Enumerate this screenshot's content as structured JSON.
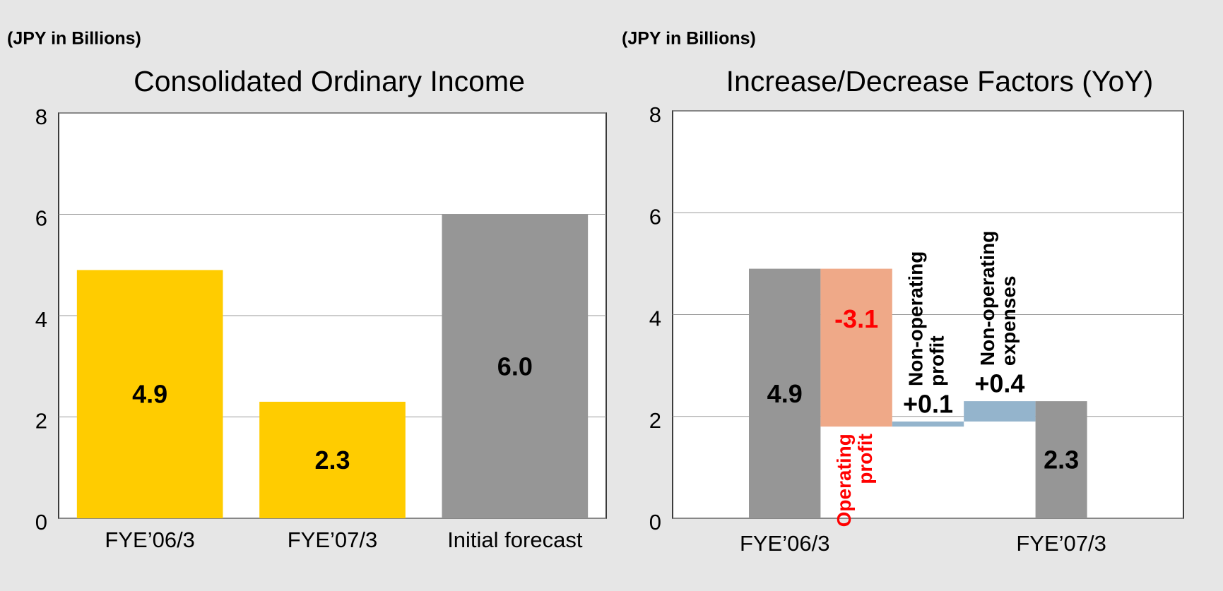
{
  "chart_data": [
    {
      "type": "bar",
      "subtitle": "(JPY in Billions)",
      "title": "Consolidated Ordinary Income",
      "categories": [
        "FYE’06/3",
        "FYE’07/3",
        "Initial forecast"
      ],
      "values": [
        4.9,
        2.3,
        6
      ],
      "value_labels": [
        "4.9",
        "2.3",
        "6.0"
      ],
      "colors": [
        "#ffcc00",
        "#ffcc00",
        "#969696"
      ],
      "ylim": [
        0,
        8
      ],
      "yticks": [
        0,
        2,
        4,
        6,
        8
      ],
      "grid": true
    },
    {
      "type": "waterfall",
      "subtitle": "(JPY in Billions)",
      "title": "Increase/Decrease Factors (YoY)",
      "categories": [
        "FYE’06/3",
        "Operating profit",
        "Non-operating profit",
        "Non-operating expenses",
        "FYE’07/3"
      ],
      "values": [
        4.9,
        -3.1,
        0.1,
        0.4,
        2.3
      ],
      "value_labels": [
        "4.9",
        "-3.1",
        "+0.1",
        "+0.4",
        "2.3"
      ],
      "colors": [
        "#969696",
        "#efa988",
        "#94b4cc",
        "#94b4cc",
        "#969696"
      ],
      "ylim": [
        0,
        8
      ],
      "yticks": [
        0,
        2,
        4,
        6,
        8
      ],
      "grid": true
    }
  ]
}
